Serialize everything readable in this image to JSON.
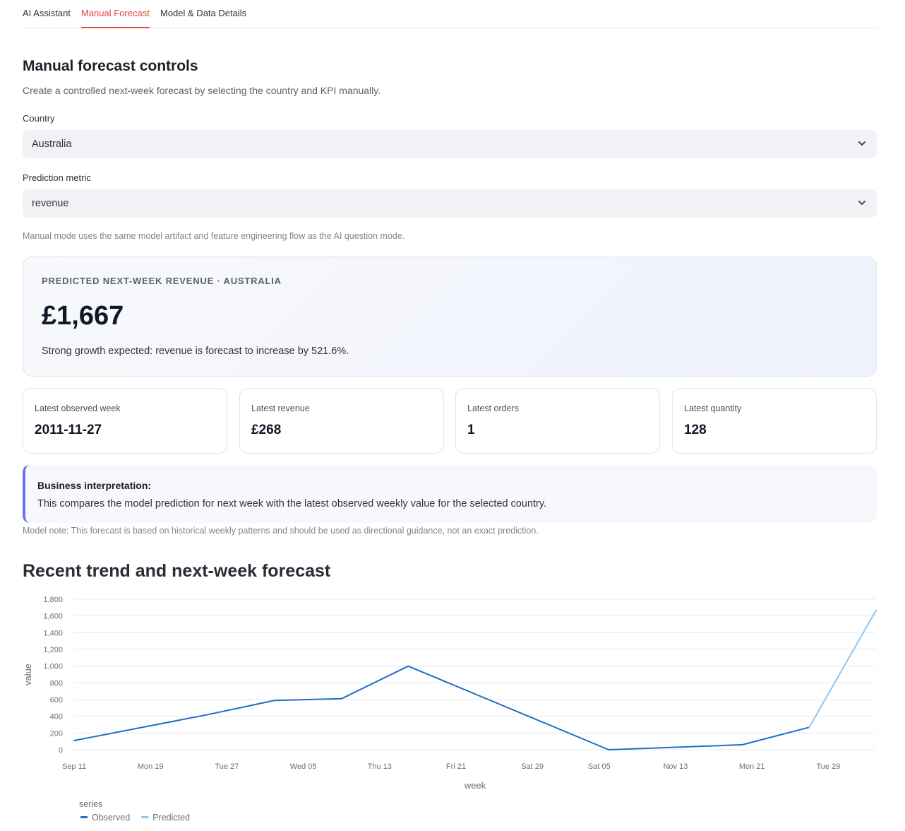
{
  "tabs": [
    {
      "label": "AI Assistant"
    },
    {
      "label": "Manual Forecast"
    },
    {
      "label": "Model & Data Details"
    }
  ],
  "controls": {
    "heading": "Manual forecast controls",
    "subtitle": "Create a controlled next-week forecast by selecting the country and KPI manually.",
    "country_label": "Country",
    "country_value": "Australia",
    "metric_label": "Prediction metric",
    "metric_value": "revenue",
    "caption": "Manual mode uses the same model artifact and feature engineering flow as the AI question mode."
  },
  "forecast": {
    "eyebrow": "PREDICTED NEXT-WEEK REVENUE · AUSTRALIA",
    "value": "£1,667",
    "description": "Strong growth expected: revenue is forecast to increase by 521.6%."
  },
  "metrics": [
    {
      "label": "Latest observed week",
      "value": "2011-11-27"
    },
    {
      "label": "Latest revenue",
      "value": "£268"
    },
    {
      "label": "Latest orders",
      "value": "1"
    },
    {
      "label": "Latest quantity",
      "value": "128"
    }
  ],
  "interpretation": {
    "title": "Business interpretation:",
    "body": "This compares the model prediction for next week with the latest observed weekly value for the selected country."
  },
  "model_note": "Model note: This forecast is based on historical weekly patterns and should be used as directional guidance, not an exact prediction.",
  "chart_section_title": "Recent trend and next-week forecast",
  "colors": {
    "accent": "#e4473f",
    "observed": "#1f6fc5",
    "predicted": "#8ec8f2",
    "interp_border": "#6e6ef2"
  },
  "chart_data": {
    "type": "line",
    "xlabel": "week",
    "ylabel": "value",
    "ylim": [
      0,
      1800
    ],
    "yticks": [
      0,
      200,
      400,
      600,
      800,
      1000,
      1200,
      1400,
      1600,
      1800
    ],
    "ytick_labels": [
      "0",
      "200",
      "400",
      "600",
      "800",
      "1,000",
      "1,200",
      "1,400",
      "1,600",
      "1,800"
    ],
    "x_domain": [
      "2011-09-11",
      "2011-12-04"
    ],
    "xticks": [
      {
        "date": "2011-09-11",
        "label": "Sep 11"
      },
      {
        "date": "2011-09-19",
        "label": "Mon 19"
      },
      {
        "date": "2011-09-27",
        "label": "Tue 27"
      },
      {
        "date": "2011-10-05",
        "label": "Wed 05"
      },
      {
        "date": "2011-10-13",
        "label": "Thu 13"
      },
      {
        "date": "2011-10-21",
        "label": "Fri 21"
      },
      {
        "date": "2011-10-29",
        "label": "Sat 29"
      },
      {
        "date": "2011-11-05",
        "label": "Sat 05"
      },
      {
        "date": "2011-11-13",
        "label": "Nov 13"
      },
      {
        "date": "2011-11-21",
        "label": "Mon 21"
      },
      {
        "date": "2011-11-29",
        "label": "Tue 29"
      }
    ],
    "grid": true,
    "legend_title": "series",
    "legend_position": "bottom-left",
    "series": [
      {
        "name": "Observed",
        "color": "#1f6fc5",
        "points": [
          {
            "x": "2011-09-11",
            "y": 110
          },
          {
            "x": "2011-09-25",
            "y": 420
          },
          {
            "x": "2011-10-02",
            "y": 590
          },
          {
            "x": "2011-10-09",
            "y": 610
          },
          {
            "x": "2011-10-16",
            "y": 1000
          },
          {
            "x": "2011-11-06",
            "y": 0
          },
          {
            "x": "2011-11-20",
            "y": 60
          },
          {
            "x": "2011-11-27",
            "y": 268
          }
        ]
      },
      {
        "name": "Predicted",
        "color": "#8ec8f2",
        "points": [
          {
            "x": "2011-11-27",
            "y": 268
          },
          {
            "x": "2011-12-04",
            "y": 1667
          }
        ]
      }
    ]
  }
}
